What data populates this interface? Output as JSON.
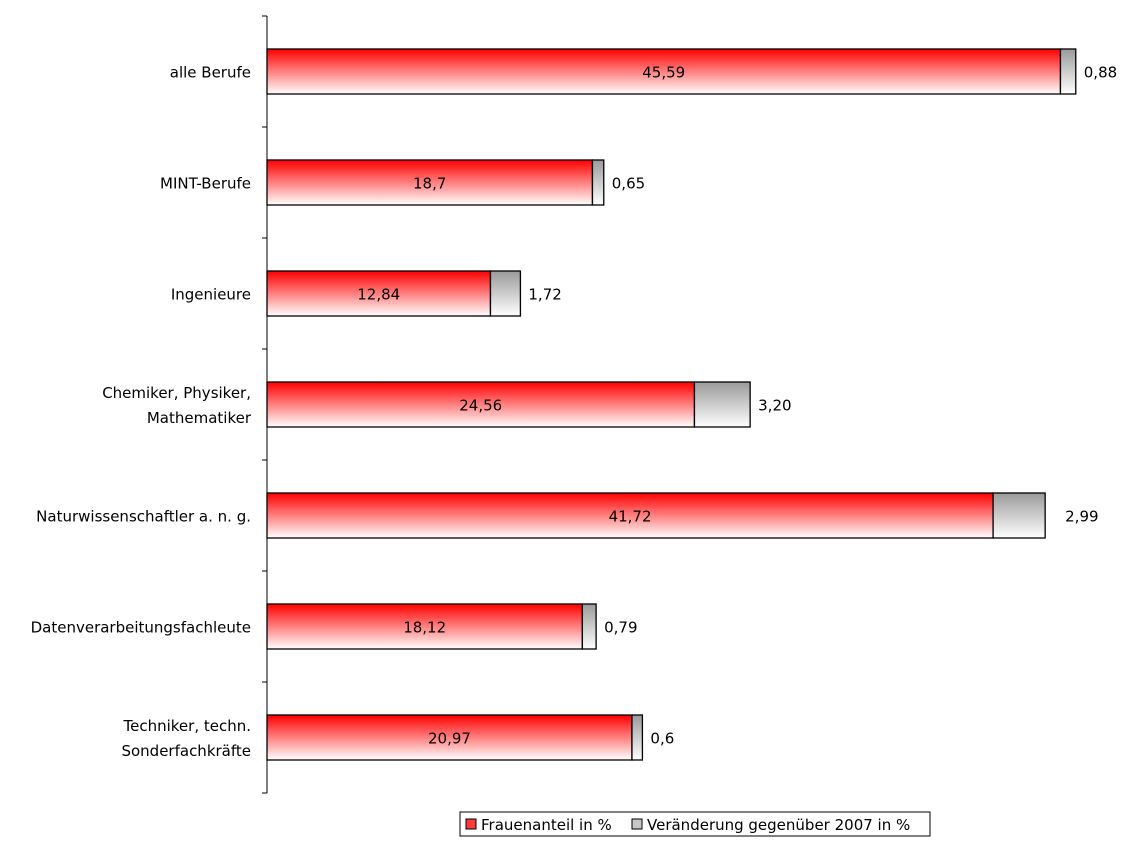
{
  "chart_data": {
    "type": "bar",
    "orientation": "horizontal",
    "stacked": true,
    "categories": [
      [
        "alle Berufe"
      ],
      [
        "MINT-Berufe"
      ],
      [
        "Ingenieure"
      ],
      [
        "Chemiker, Physiker,",
        "Mathematiker"
      ],
      [
        "Naturwissenschaftler a. n. g."
      ],
      [
        "Datenverarbeitungsfachleute"
      ],
      [
        "Techniker, techn.",
        "Sonderfachkräfte"
      ]
    ],
    "series": [
      {
        "name": "Frauenanteil in %",
        "values": [
          45.59,
          18.7,
          12.84,
          24.56,
          41.72,
          18.12,
          20.97
        ],
        "labels": [
          "45,59",
          "18,7",
          "12,84",
          "24,56",
          "41,72",
          "18,12",
          "20,97"
        ],
        "color": "#ff0000"
      },
      {
        "name": "Veränderung gegenüber 2007 in %",
        "values": [
          0.88,
          0.65,
          1.72,
          3.2,
          2.99,
          0.79,
          0.6
        ],
        "labels": [
          "0,88",
          "0,65",
          "1,72",
          "3,20",
          "2,99",
          "0,79",
          "0,6"
        ],
        "color": "#a6a6a6"
      }
    ],
    "xlim": [
      0,
      47
    ],
    "grid": false,
    "legend": "bottom"
  }
}
